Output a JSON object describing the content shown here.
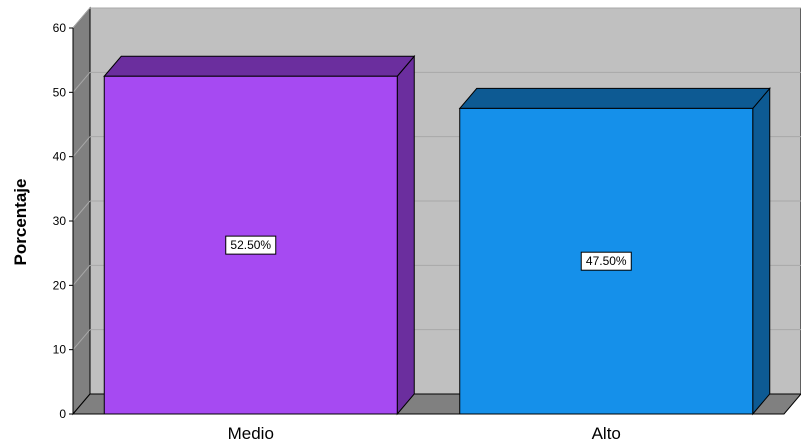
{
  "chart_data": {
    "type": "bar",
    "style": "3d",
    "categories": [
      "Medio",
      "Alto"
    ],
    "values": [
      52.5,
      47.5
    ],
    "data_labels": [
      "52.50%",
      "47.50%"
    ],
    "bar_colors": [
      "#a64af2",
      "#1590ea"
    ],
    "bar_side_colors": [
      "#6b2e9e",
      "#0d5a93"
    ],
    "ylabel": "Porcentaje",
    "ylim": [
      0,
      60
    ],
    "yticks": [
      0,
      10,
      20,
      30,
      40,
      50,
      60
    ],
    "grid": true,
    "wall_color": "#c0c0c0",
    "floor_color": "#808080",
    "legend": "none"
  }
}
